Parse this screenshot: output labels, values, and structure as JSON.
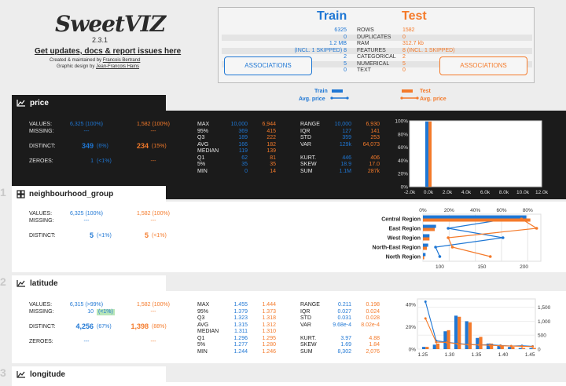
{
  "header": {
    "logo_text": "SweetVIZ",
    "version": "2.3.1",
    "updates_link": "Get updates, docs & report issues here",
    "credits_created_prefix": "Created & maintained by ",
    "credits_created_name": "Francois Bertrand",
    "credits_design_prefix": "Graphic design by ",
    "credits_design_name": "Jean-Francois Hains"
  },
  "summary": {
    "train_title": "Train",
    "test_title": "Test",
    "rows": [
      {
        "train": "6325",
        "label": "ROWS",
        "test": "1582"
      },
      {
        "train": "0",
        "label": "DUPLICATES",
        "test": "0"
      },
      {
        "train": "1.2 MB",
        "label": "RAM",
        "test": "312.7 kb"
      },
      {
        "train": "(INCL. 1 SKIPPED) 8",
        "label": "FEATURES",
        "test": "8 (INCL. 1 SKIPPED)"
      },
      {
        "train": "2",
        "label": "CATEGORICAL",
        "test": "2"
      },
      {
        "train": "5",
        "label": "NUMERICAL",
        "test": "5"
      },
      {
        "train": "0",
        "label": "TEXT",
        "test": "0"
      }
    ],
    "assoc_train_label": "ASSOCIATIONS",
    "assoc_test_label": "ASSOCIATIONS"
  },
  "legend": {
    "train": "Train",
    "avg_train": "Avg. price",
    "test": "Test",
    "avg_test": "Avg. price"
  },
  "colors": {
    "train": "#1f77d4",
    "test": "#f47a2a",
    "dark_panel": "#1b1b1b"
  },
  "features": {
    "price": {
      "name": "price",
      "icon": "numerical-icon",
      "left_stats": {
        "values_label": "VALUES:",
        "values_train": "6,325 (100%)",
        "values_test": "1,582 (100%)",
        "missing_label": "MISSING:",
        "missing_train": "---",
        "missing_test": "---",
        "distinct_label": "DISTINCT:",
        "distinct_train": "349",
        "distinct_train_pct": "(6%)",
        "distinct_test": "234",
        "distinct_test_pct": "(15%)",
        "zeroes_label": "ZEROES:",
        "zeroes_train": "1",
        "zeroes_train_pct": "(<1%)",
        "zeroes_test": "---"
      },
      "mid_stats": [
        {
          "label": "MAX",
          "train": "10,000",
          "test": "6,944"
        },
        {
          "label": "95%",
          "train": "369",
          "test": "415"
        },
        {
          "label": "Q3",
          "train": "189",
          "test": "222"
        },
        {
          "label": "AVG",
          "train": "166",
          "test": "182"
        },
        {
          "label": "MEDIAN",
          "train": "119",
          "test": "139"
        },
        {
          "label": "Q1",
          "train": "62",
          "test": "81"
        },
        {
          "label": "5%",
          "train": "35",
          "test": "35"
        },
        {
          "label": "MIN",
          "train": "0",
          "test": "14"
        }
      ],
      "right_stats": [
        {
          "label": "RANGE",
          "train": "10,000",
          "test": "6,930"
        },
        {
          "label": "IQR",
          "train": "127",
          "test": "141"
        },
        {
          "label": "STD",
          "train": "359",
          "test": "253"
        },
        {
          "label": "VAR",
          "train": "129k",
          "test": "64,073"
        },
        {
          "label": "",
          "train": "",
          "test": ""
        },
        {
          "label": "KURT.",
          "train": "446",
          "test": "406"
        },
        {
          "label": "SKEW",
          "train": "18.9",
          "test": "17.0"
        },
        {
          "label": "SUM",
          "train": "1.1M",
          "test": "287k"
        }
      ]
    },
    "neighbourhood_group": {
      "section_number": "1",
      "name": "neighbourhood_group",
      "icon": "categorical-icon",
      "left_stats": {
        "values_label": "VALUES:",
        "values_train": "6,325 (100%)",
        "values_test": "1,582 (100%)",
        "missing_label": "MISSING:",
        "missing_train": "---",
        "missing_test": "---",
        "distinct_label": "DISTINCT:",
        "distinct_train": "5",
        "distinct_train_pct": "(<1%)",
        "distinct_test": "5",
        "distinct_test_pct": "(<1%)"
      }
    },
    "latitude": {
      "section_number": "2",
      "name": "latitude",
      "icon": "numerical-icon",
      "left_stats": {
        "values_label": "VALUES:",
        "values_train": "6,315 (>99%)",
        "values_test": "1,582 (100%)",
        "missing_label": "MISSING:",
        "missing_train": "10",
        "missing_train_pct": "(<1%)",
        "missing_test": "---",
        "distinct_label": "DISTINCT:",
        "distinct_train": "4,256",
        "distinct_train_pct": "(67%)",
        "distinct_test": "1,398",
        "distinct_test_pct": "(88%)",
        "zeroes_label": "ZEROES:",
        "zeroes_train": "---",
        "zeroes_test": "---"
      },
      "mid_stats": [
        {
          "label": "MAX",
          "train": "1.455",
          "test": "1.444"
        },
        {
          "label": "95%",
          "train": "1.379",
          "test": "1.373"
        },
        {
          "label": "Q3",
          "train": "1.323",
          "test": "1.318"
        },
        {
          "label": "AVG",
          "train": "1.315",
          "test": "1.312"
        },
        {
          "label": "MEDIAN",
          "train": "1.311",
          "test": "1.310"
        },
        {
          "label": "Q1",
          "train": "1.296",
          "test": "1.295"
        },
        {
          "label": "5%",
          "train": "1.277",
          "test": "1.280"
        },
        {
          "label": "MIN",
          "train": "1.244",
          "test": "1.246"
        }
      ],
      "right_stats": [
        {
          "label": "RANGE",
          "train": "0.211",
          "test": "0.198"
        },
        {
          "label": "IQR",
          "train": "0.027",
          "test": "0.024"
        },
        {
          "label": "STD",
          "train": "0.031",
          "test": "0.028"
        },
        {
          "label": "VAR",
          "train": "9.68e-4",
          "test": "8.02e-4"
        },
        {
          "label": "",
          "train": "",
          "test": ""
        },
        {
          "label": "KURT.",
          "train": "3.97",
          "test": "4.88"
        },
        {
          "label": "SKEW",
          "train": "1.69",
          "test": "1.84"
        },
        {
          "label": "SUM",
          "train": "8,302",
          "test": "2,076"
        }
      ]
    },
    "longitude": {
      "section_number": "3",
      "name": "longitude",
      "icon": "numerical-icon"
    }
  },
  "chart_data": [
    {
      "type": "bar",
      "feature": "price",
      "x_ticks": [
        "-2.0k",
        "0.0k",
        "2.0k",
        "4.0k",
        "6.0k",
        "8.0k",
        "10.0k",
        "12.0k"
      ],
      "y_ticks": [
        "100%",
        "80%",
        "60%",
        "40%",
        "20%",
        "0%"
      ],
      "xlim": [
        -2000,
        12000
      ],
      "ylim": [
        0,
        100
      ],
      "series": [
        {
          "name": "Train",
          "x": [
            0
          ],
          "values": [
            99
          ]
        },
        {
          "name": "Test",
          "x": [
            0
          ],
          "values": [
            99
          ]
        }
      ]
    },
    {
      "type": "bar",
      "orientation": "horizontal",
      "feature": "neighbourhood_group",
      "categories": [
        "Central Region",
        "East Region",
        "West Region",
        "North-East Region",
        "North Region"
      ],
      "top_ticks": [
        "0%",
        "20%",
        "40%",
        "60%",
        "80%"
      ],
      "bottom_ticks": [
        "100",
        "150",
        "200"
      ],
      "xlim_pct": [
        0,
        90
      ],
      "xlim_avg": [
        80,
        220
      ],
      "series": [
        {
          "name": "Train",
          "values_pct": [
            79,
            10,
            5,
            4,
            2
          ],
          "avg_price": [
            180,
            110,
            175,
            95,
            100
          ]
        },
        {
          "name": "Test",
          "values_pct": [
            82,
            9,
            5,
            3,
            1
          ],
          "avg_price": [
            197,
            215,
            110,
            115,
            160
          ]
        }
      ]
    },
    {
      "type": "bar",
      "feature": "latitude",
      "x_ticks": [
        "1.25",
        "1.30",
        "1.35",
        "1.40",
        "1.45"
      ],
      "y_ticks_left": [
        "40%",
        "20%",
        "0%"
      ],
      "y_ticks_right": [
        "1,500",
        "1,000",
        "500",
        "0"
      ],
      "xlim": [
        1.24,
        1.46
      ],
      "ylim_pct": [
        0,
        45
      ],
      "ylim_avg": [
        0,
        1800
      ],
      "x": [
        1.255,
        1.275,
        1.295,
        1.315,
        1.335,
        1.355,
        1.375,
        1.395,
        1.415,
        1.435,
        1.455
      ],
      "series": [
        {
          "name": "Train",
          "values_pct": [
            2,
            4,
            16,
            30,
            25,
            10,
            5,
            3,
            2,
            1,
            1
          ],
          "avg_price": [
            1700,
            300,
            250,
            200,
            170,
            150,
            160,
            130,
            110,
            120,
            100
          ]
        },
        {
          "name": "Test",
          "values_pct": [
            2,
            5,
            17,
            29,
            24,
            11,
            5,
            3,
            2,
            1,
            1
          ],
          "avg_price": [
            1100,
            250,
            240,
            190,
            160,
            150,
            140,
            120,
            110,
            100,
            90
          ]
        }
      ]
    }
  ]
}
